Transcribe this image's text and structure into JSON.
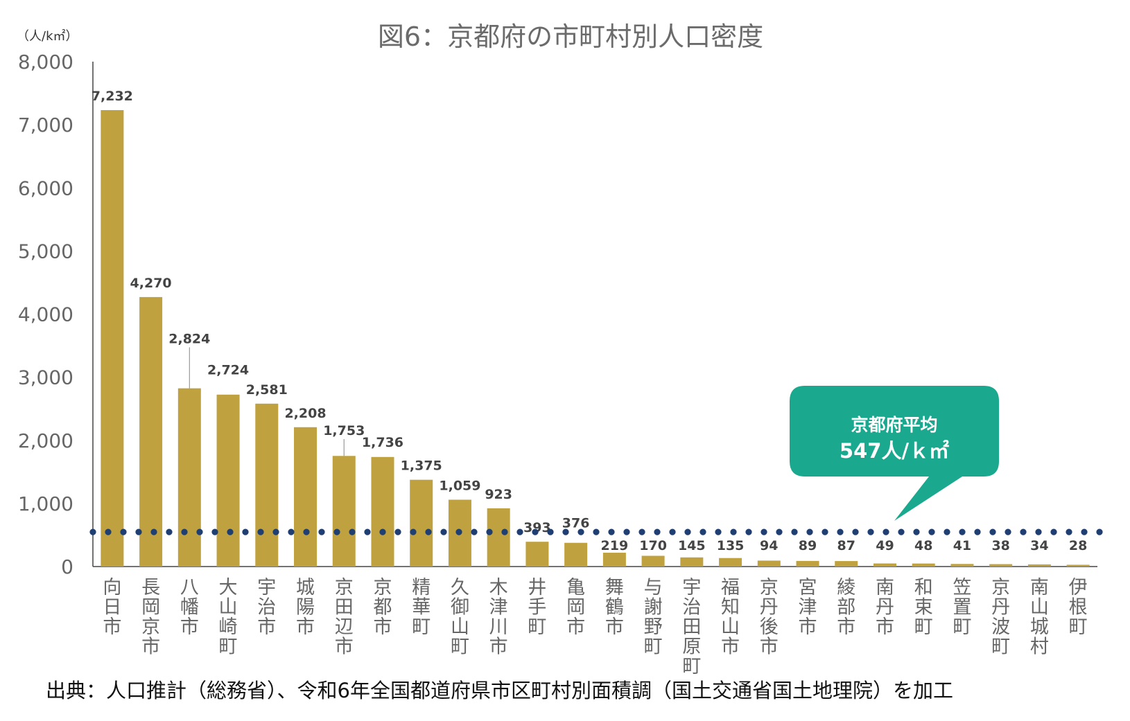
{
  "chart_data": {
    "type": "bar",
    "title": "図6：京都府の市町村別人口密度",
    "unit_label": "（人/k㎡）",
    "ylim": [
      0,
      8000
    ],
    "yticks": [
      "0",
      "1,000",
      "2,000",
      "3,000",
      "4,000",
      "5,000",
      "6,000",
      "7,000",
      "8,000"
    ],
    "grid": false,
    "bar_color": "#BFA13F",
    "categories": [
      "向日市",
      "長岡京市",
      "八幡市",
      "大山崎町",
      "宇治市",
      "城陽市",
      "京田辺市",
      "京都市",
      "精華町",
      "久御山町",
      "木津川市",
      "井手町",
      "亀岡市",
      "舞鶴市",
      "与謝野町",
      "宇治田原町",
      "福知山市",
      "京丹後市",
      "宮津市",
      "綾部市",
      "南丹市",
      "和束町",
      "笠置町",
      "京丹波町",
      "南山城村",
      "伊根町"
    ],
    "values": [
      7232,
      4270,
      2824,
      2724,
      2581,
      2208,
      1753,
      1736,
      1375,
      1059,
      923,
      393,
      376,
      219,
      170,
      145,
      135,
      94,
      89,
      87,
      49,
      48,
      41,
      38,
      34,
      28
    ],
    "value_labels": [
      "7,232",
      "4,270",
      "2,824",
      "2,724",
      "2,581",
      "2,208",
      "1,753",
      "1,736",
      "1,375",
      "1,059",
      "923",
      "393",
      "376",
      "219",
      "170",
      "145",
      "135",
      "94",
      "89",
      "87",
      "49",
      "48",
      "41",
      "38",
      "34",
      "28"
    ],
    "average": {
      "value": 547,
      "line_color": "#1F3F73",
      "callout_color": "#1AA88E",
      "label_line1": "京都府平均",
      "label_line2": "547人/ｋ㎡"
    },
    "source": "出典：人口推計（総務省）、令和6年全国都道府県市区町村別面積調（国土交通省国土地理院）を加工"
  }
}
